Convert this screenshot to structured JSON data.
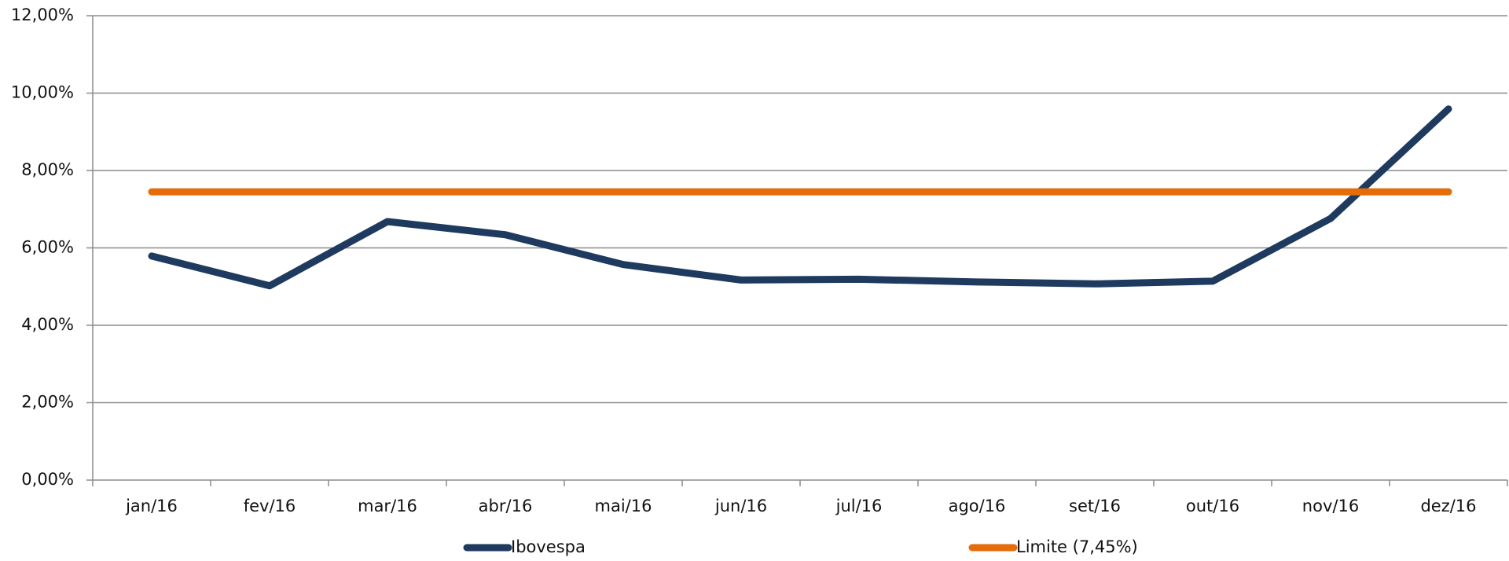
{
  "chart_data": {
    "type": "line",
    "categories": [
      "jan/16",
      "fev/16",
      "mar/16",
      "abr/16",
      "mai/16",
      "jun/16",
      "jul/16",
      "ago/16",
      "set/16",
      "out/16",
      "nov/16",
      "dez/16"
    ],
    "series": [
      {
        "name": "Ibovespa",
        "color": "#1f3a5f",
        "values": [
          5.79,
          5.02,
          6.68,
          6.34,
          5.57,
          5.17,
          5.19,
          5.12,
          5.07,
          5.14,
          6.76,
          9.59
        ]
      },
      {
        "name": "Limite (7,45%)",
        "color": "#e46c0a",
        "values": [
          7.45,
          7.45,
          7.45,
          7.45,
          7.45,
          7.45,
          7.45,
          7.45,
          7.45,
          7.45,
          7.45,
          7.45
        ]
      }
    ],
    "ylim": [
      0,
      12
    ],
    "yticks": [
      {
        "value": 0,
        "label": "0,00%"
      },
      {
        "value": 2,
        "label": "2,00%"
      },
      {
        "value": 4,
        "label": "4,00%"
      },
      {
        "value": 6,
        "label": "6,00%"
      },
      {
        "value": 8,
        "label": "8,00%"
      },
      {
        "value": 10,
        "label": "10,00%"
      },
      {
        "value": 12,
        "label": "12,00%"
      }
    ],
    "grid": true,
    "legend": "bottom"
  }
}
